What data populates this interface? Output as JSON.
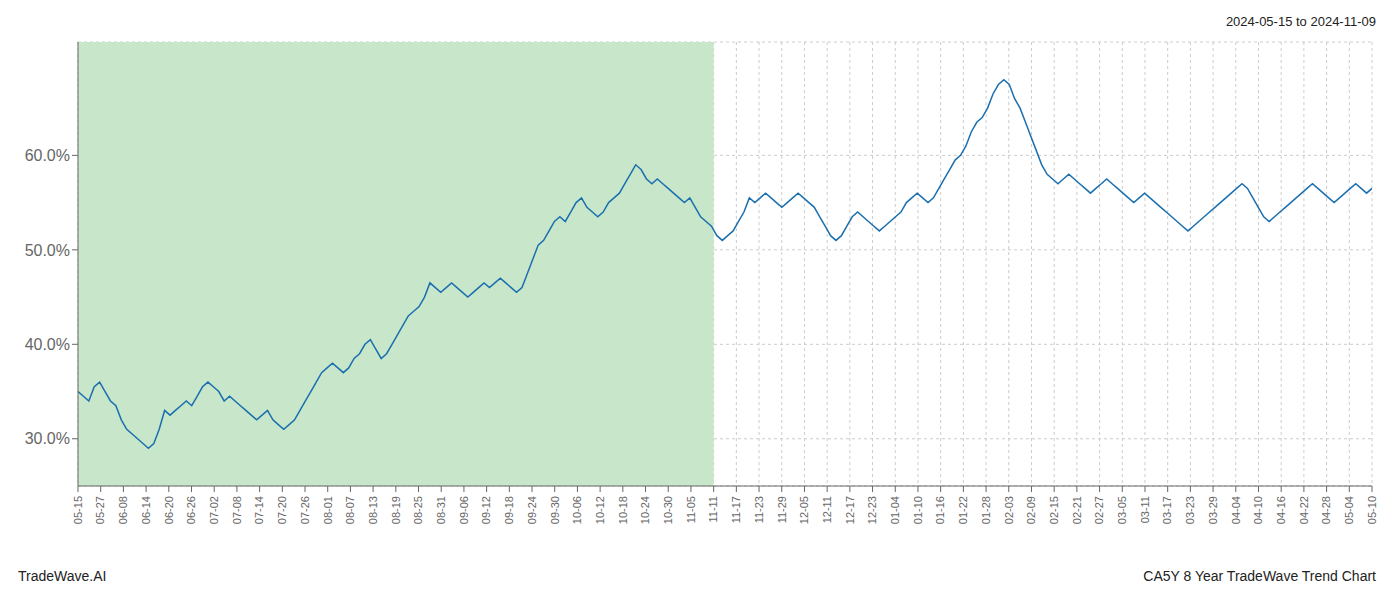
{
  "chart_data": {
    "type": "line",
    "annotations": [
      "2024-05-15 to 2024-11-09",
      "TradeWave.AI",
      "CA5Y 8 Year TradeWave Trend Chart"
    ],
    "color": "#1a6faf",
    "grid": true,
    "ylim": [
      25.0,
      72.0
    ],
    "yticks": [
      {
        "value": 30.0,
        "label": "30.0%"
      },
      {
        "value": 40.0,
        "label": "40.0%"
      },
      {
        "value": 50.0,
        "label": "50.0%"
      },
      {
        "value": 60.0,
        "label": "60.0%"
      }
    ],
    "x_tick_labels": [
      "05-15",
      "05-27",
      "06-08",
      "06-14",
      "06-20",
      "06-26",
      "07-02",
      "07-08",
      "07-14",
      "07-20",
      "07-26",
      "08-01",
      "08-07",
      "08-13",
      "08-19",
      "08-25",
      "08-31",
      "09-06",
      "09-12",
      "09-18",
      "09-24",
      "09-30",
      "10-06",
      "10-12",
      "10-18",
      "10-24",
      "10-30",
      "11-05",
      "11-11",
      "11-17",
      "11-23",
      "11-29",
      "12-05",
      "12-11",
      "12-17",
      "12-23",
      "01-04",
      "01-10",
      "01-16",
      "01-22",
      "01-28",
      "02-03",
      "02-09",
      "02-15",
      "02-21",
      "02-27",
      "03-05",
      "03-11",
      "03-17",
      "03-23",
      "03-29",
      "04-04",
      "04-10",
      "04-16",
      "04-22",
      "04-28",
      "05-04",
      "05-10"
    ],
    "shaded_region": {
      "from": "05-15",
      "to": "11-11",
      "color": "#c8e6c9"
    },
    "values": [
      35.0,
      34.5,
      34.0,
      35.5,
      36.0,
      35.0,
      34.0,
      33.5,
      32.0,
      31.0,
      30.5,
      30.0,
      29.5,
      29.0,
      29.5,
      31.0,
      33.0,
      32.5,
      33.0,
      33.5,
      34.0,
      33.5,
      34.5,
      35.5,
      36.0,
      35.5,
      35.0,
      34.0,
      34.5,
      34.0,
      33.5,
      33.0,
      32.5,
      32.0,
      32.5,
      33.0,
      32.0,
      31.5,
      31.0,
      31.5,
      32.0,
      33.0,
      34.0,
      35.0,
      36.0,
      37.0,
      37.5,
      38.0,
      37.5,
      37.0,
      37.5,
      38.5,
      39.0,
      40.0,
      40.5,
      39.5,
      38.5,
      39.0,
      40.0,
      41.0,
      42.0,
      43.0,
      43.5,
      44.0,
      45.0,
      46.5,
      46.0,
      45.5,
      46.0,
      46.5,
      46.0,
      45.5,
      45.0,
      45.5,
      46.0,
      46.5,
      46.0,
      46.5,
      47.0,
      46.5,
      46.0,
      45.5,
      46.0,
      47.5,
      49.0,
      50.5,
      51.0,
      52.0,
      53.0,
      53.5,
      53.0,
      54.0,
      55.0,
      55.5,
      54.5,
      54.0,
      53.5,
      54.0,
      55.0,
      55.5,
      56.0,
      57.0,
      58.0,
      59.0,
      58.5,
      57.5,
      57.0,
      57.5,
      57.0,
      56.5,
      56.0,
      55.5,
      55.0,
      55.5,
      54.5,
      53.5,
      53.0,
      52.5,
      51.5,
      51.0,
      51.5,
      52.0,
      53.0,
      54.0,
      55.5,
      55.0,
      55.5,
      56.0,
      55.5,
      55.0,
      54.5,
      55.0,
      55.5,
      56.0,
      55.5,
      55.0,
      54.5,
      53.5,
      52.5,
      51.5,
      51.0,
      51.5,
      52.5,
      53.5,
      54.0,
      53.5,
      53.0,
      52.5,
      52.0,
      52.5,
      53.0,
      53.5,
      54.0,
      55.0,
      55.5,
      56.0,
      55.5,
      55.0,
      55.5,
      56.5,
      57.5,
      58.5,
      59.5,
      60.0,
      61.0,
      62.5,
      63.5,
      64.0,
      65.0,
      66.5,
      67.5,
      68.0,
      67.5,
      66.0,
      65.0,
      63.5,
      62.0,
      60.5,
      59.0,
      58.0,
      57.5,
      57.0,
      57.5,
      58.0,
      57.5,
      57.0,
      56.5,
      56.0,
      56.5,
      57.0,
      57.5,
      57.0,
      56.5,
      56.0,
      55.5,
      55.0,
      55.5,
      56.0,
      55.5,
      55.0,
      54.5,
      54.0,
      53.5,
      53.0,
      52.5,
      52.0,
      52.5,
      53.0,
      53.5,
      54.0,
      54.5,
      55.0,
      55.5,
      56.0,
      56.5,
      57.0,
      56.5,
      55.5,
      54.5,
      53.5,
      53.0,
      53.5,
      54.0,
      54.5,
      55.0,
      55.5,
      56.0,
      56.5,
      57.0,
      56.5,
      56.0,
      55.5,
      55.0,
      55.5,
      56.0,
      56.5,
      57.0,
      56.5,
      56.0,
      56.5
    ]
  }
}
